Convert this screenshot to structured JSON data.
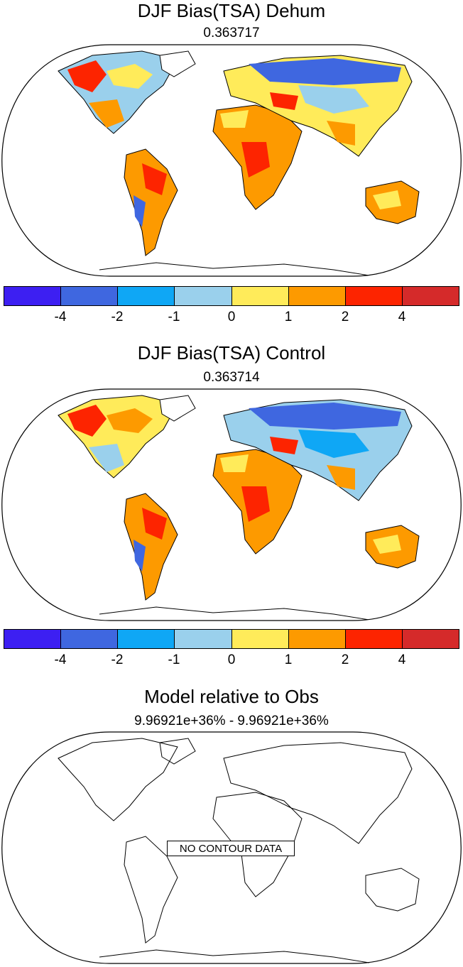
{
  "panels": [
    {
      "title": "DJF Bias(TSA) Dehum",
      "subtitle": "0.363717"
    },
    {
      "title": "DJF Bias(TSA) Control",
      "subtitle": "0.363714"
    },
    {
      "title": "Model relative to Obs",
      "subtitle": "9.96921e+36% - 9.96921e+36%",
      "no_data_label": "NO CONTOUR DATA"
    }
  ],
  "colorbar": {
    "colors": [
      "#3d1ff2",
      "#3f67e0",
      "#0fa7f5",
      "#9ad0ec",
      "#ffeb5a",
      "#fd9a00",
      "#fd2400",
      "#d52a2a"
    ],
    "tick_labels": [
      "-4",
      "-2",
      "-1",
      "0",
      "1",
      "2",
      "4"
    ]
  }
}
